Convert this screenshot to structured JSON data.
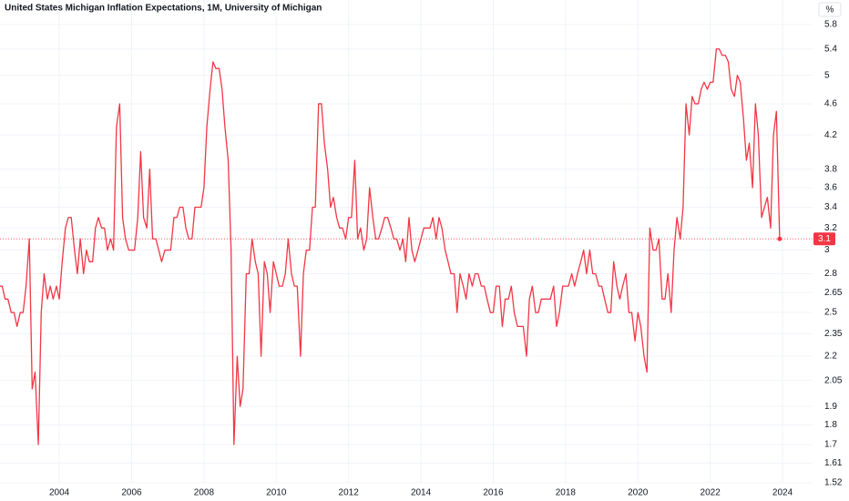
{
  "chart_data": {
    "type": "line",
    "title": "United States Michigan Inflation Expectations, 1M, University of Michigan",
    "unit_label": "%",
    "color": "#f23645",
    "log_scale": true,
    "grid": true,
    "xlim": [
      2002.36,
      2024.83
    ],
    "xticks": [
      2004,
      2006,
      2008,
      2010,
      2012,
      2014,
      2016,
      2018,
      2020,
      2022,
      2024
    ],
    "ylim": [
      1.52,
      6.23
    ],
    "yticks": [
      1.52,
      1.61,
      1.7,
      1.8,
      1.9,
      2.05,
      2.2,
      2.35,
      2.5,
      2.65,
      2.8,
      3,
      3.2,
      3.4,
      3.6,
      3.8,
      4.2,
      4.6,
      5,
      5.4,
      5.8
    ],
    "x": [
      2002.33,
      2002.42,
      2002.5,
      2002.58,
      2002.67,
      2002.75,
      2002.83,
      2002.92,
      2003,
      2003.08,
      2003.17,
      2003.25,
      2003.33,
      2003.42,
      2003.5,
      2003.58,
      2003.67,
      2003.75,
      2003.83,
      2003.92,
      2004,
      2004.08,
      2004.17,
      2004.25,
      2004.33,
      2004.42,
      2004.5,
      2004.58,
      2004.67,
      2004.75,
      2004.83,
      2004.92,
      2005,
      2005.08,
      2005.17,
      2005.25,
      2005.33,
      2005.42,
      2005.5,
      2005.58,
      2005.67,
      2005.75,
      2005.83,
      2005.92,
      2006,
      2006.08,
      2006.17,
      2006.25,
      2006.33,
      2006.42,
      2006.5,
      2006.58,
      2006.67,
      2006.75,
      2006.83,
      2006.92,
      2007,
      2007.08,
      2007.17,
      2007.25,
      2007.33,
      2007.42,
      2007.5,
      2007.58,
      2007.67,
      2007.75,
      2007.83,
      2007.92,
      2008,
      2008.08,
      2008.17,
      2008.25,
      2008.33,
      2008.42,
      2008.5,
      2008.58,
      2008.67,
      2008.75,
      2008.83,
      2008.92,
      2009,
      2009.08,
      2009.17,
      2009.25,
      2009.33,
      2009.42,
      2009.5,
      2009.58,
      2009.67,
      2009.75,
      2009.83,
      2009.92,
      2010,
      2010.08,
      2010.17,
      2010.25,
      2010.33,
      2010.42,
      2010.5,
      2010.58,
      2010.67,
      2010.75,
      2010.83,
      2010.92,
      2011,
      2011.08,
      2011.17,
      2011.25,
      2011.33,
      2011.42,
      2011.5,
      2011.58,
      2011.67,
      2011.75,
      2011.83,
      2011.92,
      2012,
      2012.08,
      2012.17,
      2012.25,
      2012.33,
      2012.42,
      2012.5,
      2012.58,
      2012.67,
      2012.75,
      2012.83,
      2012.92,
      2013,
      2013.08,
      2013.17,
      2013.25,
      2013.33,
      2013.42,
      2013.5,
      2013.58,
      2013.67,
      2013.75,
      2013.83,
      2013.92,
      2014,
      2014.08,
      2014.17,
      2014.25,
      2014.33,
      2014.42,
      2014.5,
      2014.58,
      2014.67,
      2014.75,
      2014.83,
      2014.92,
      2015,
      2015.08,
      2015.17,
      2015.25,
      2015.33,
      2015.42,
      2015.5,
      2015.58,
      2015.67,
      2015.75,
      2015.83,
      2015.92,
      2016,
      2016.08,
      2016.17,
      2016.25,
      2016.33,
      2016.42,
      2016.5,
      2016.58,
      2016.67,
      2016.75,
      2016.83,
      2016.92,
      2017,
      2017.08,
      2017.17,
      2017.25,
      2017.33,
      2017.42,
      2017.5,
      2017.58,
      2017.67,
      2017.75,
      2017.83,
      2017.92,
      2018,
      2018.08,
      2018.17,
      2018.25,
      2018.33,
      2018.42,
      2018.5,
      2018.58,
      2018.67,
      2018.75,
      2018.83,
      2018.92,
      2019,
      2019.08,
      2019.17,
      2019.25,
      2019.33,
      2019.42,
      2019.5,
      2019.58,
      2019.67,
      2019.75,
      2019.83,
      2019.92,
      2020,
      2020.08,
      2020.17,
      2020.25,
      2020.33,
      2020.42,
      2020.5,
      2020.58,
      2020.67,
      2020.75,
      2020.83,
      2020.92,
      2021,
      2021.08,
      2021.17,
      2021.25,
      2021.33,
      2021.42,
      2021.5,
      2021.58,
      2021.67,
      2021.75,
      2021.83,
      2021.92,
      2022,
      2022.08,
      2022.17,
      2022.25,
      2022.33,
      2022.42,
      2022.5,
      2022.58,
      2022.67,
      2022.75,
      2022.83,
      2022.92,
      2023,
      2023.08,
      2023.17,
      2023.25,
      2023.33,
      2023.42,
      2023.5,
      2023.58,
      2023.67,
      2023.75,
      2023.83,
      2023.92
    ],
    "values": [
      2.7,
      2.7,
      2.6,
      2.6,
      2.5,
      2.5,
      2.4,
      2.5,
      2.5,
      2.7,
      3.1,
      2.0,
      2.1,
      1.7,
      2.5,
      2.8,
      2.6,
      2.7,
      2.6,
      2.7,
      2.6,
      2.9,
      3.2,
      3.3,
      3.3,
      3.0,
      2.8,
      3.1,
      2.8,
      3.0,
      2.9,
      2.9,
      3.2,
      3.3,
      3.2,
      3.2,
      3.0,
      3.1,
      3.0,
      4.3,
      4.6,
      3.3,
      3.1,
      3.0,
      3.0,
      3.0,
      3.3,
      4.0,
      3.3,
      3.2,
      3.8,
      3.1,
      3.1,
      3.0,
      2.9,
      3.0,
      3.0,
      3.0,
      3.3,
      3.3,
      3.4,
      3.4,
      3.2,
      3.1,
      3.1,
      3.4,
      3.4,
      3.4,
      3.6,
      4.3,
      4.8,
      5.2,
      5.1,
      5.1,
      4.8,
      4.3,
      3.9,
      3.0,
      1.7,
      2.2,
      1.9,
      2.0,
      2.8,
      2.8,
      3.1,
      2.9,
      2.8,
      2.2,
      2.9,
      2.8,
      2.5,
      2.9,
      2.8,
      2.7,
      2.7,
      2.8,
      3.1,
      2.8,
      2.7,
      2.7,
      2.2,
      2.8,
      3.0,
      3.0,
      3.4,
      3.4,
      4.6,
      4.6,
      4.1,
      3.8,
      3.4,
      3.5,
      3.3,
      3.2,
      3.2,
      3.1,
      3.3,
      3.3,
      3.9,
      3.1,
      3.2,
      3.0,
      3.1,
      3.6,
      3.3,
      3.1,
      3.1,
      3.2,
      3.3,
      3.3,
      3.2,
      3.1,
      3.1,
      3.0,
      3.1,
      2.9,
      3.3,
      3.0,
      2.9,
      3.0,
      3.1,
      3.2,
      3.2,
      3.2,
      3.3,
      3.1,
      3.3,
      3.2,
      3.0,
      2.9,
      2.8,
      2.8,
      2.5,
      2.8,
      2.7,
      2.6,
      2.8,
      2.7,
      2.8,
      2.8,
      2.7,
      2.7,
      2.6,
      2.5,
      2.5,
      2.7,
      2.7,
      2.4,
      2.6,
      2.6,
      2.7,
      2.5,
      2.4,
      2.4,
      2.4,
      2.2,
      2.6,
      2.7,
      2.5,
      2.5,
      2.6,
      2.6,
      2.6,
      2.6,
      2.7,
      2.4,
      2.5,
      2.7,
      2.7,
      2.7,
      2.8,
      2.7,
      2.8,
      2.9,
      3.0,
      2.8,
      3.0,
      2.8,
      2.8,
      2.7,
      2.7,
      2.6,
      2.5,
      2.5,
      2.9,
      2.7,
      2.6,
      2.7,
      2.8,
      2.5,
      2.5,
      2.3,
      2.5,
      2.4,
      2.2,
      2.1,
      3.2,
      3.0,
      3.0,
      3.1,
      2.6,
      2.6,
      2.8,
      2.5,
      3.0,
      3.3,
      3.1,
      3.4,
      4.6,
      4.2,
      4.7,
      4.6,
      4.6,
      4.8,
      4.9,
      4.8,
      4.9,
      4.9,
      5.4,
      5.4,
      5.3,
      5.3,
      5.2,
      4.8,
      4.7,
      5.0,
      4.9,
      4.4,
      3.9,
      4.1,
      3.6,
      4.6,
      4.2,
      3.3,
      3.4,
      3.5,
      3.2,
      4.2,
      4.5,
      3.1
    ]
  }
}
